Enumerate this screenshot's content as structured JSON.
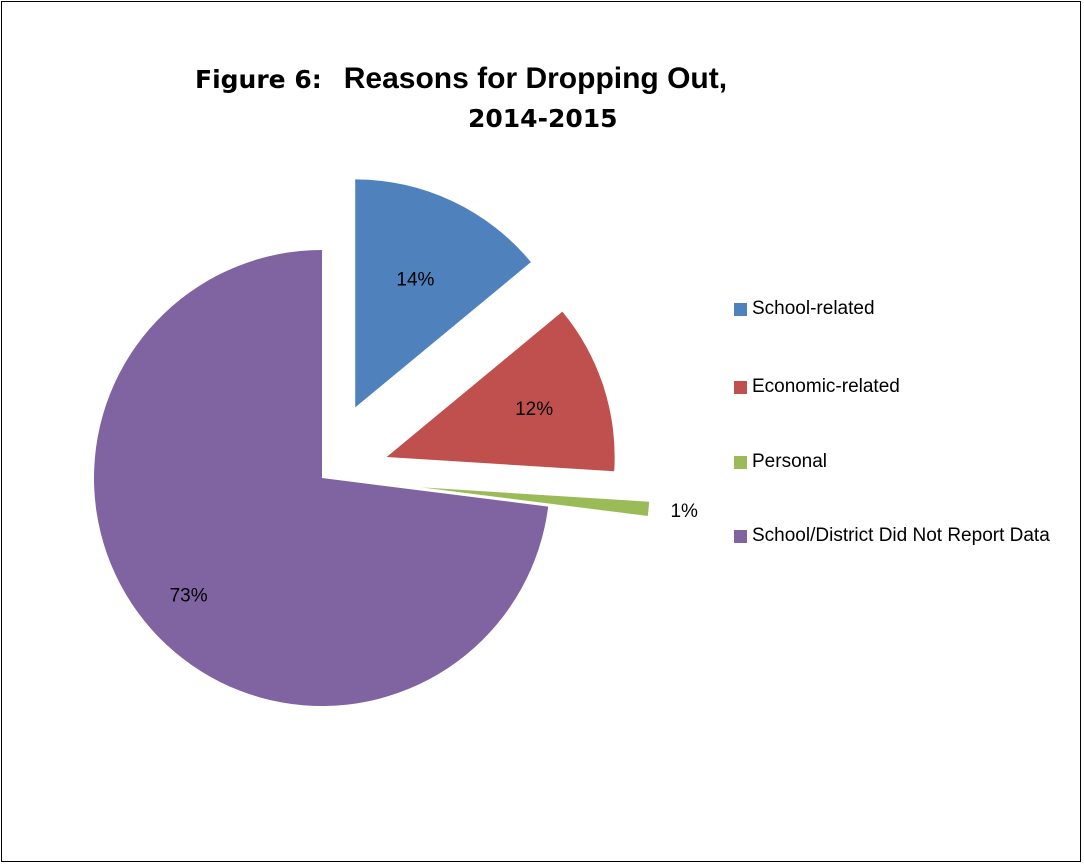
{
  "chart_data": {
    "type": "pie",
    "title_prefix": "Figure 6:",
    "title_main": "Reasons for Dropping Out,",
    "title_line2": "2014-2015",
    "categories": [
      "School-related",
      "Economic-related",
      "Personal",
      "School/District Did Not Report Data"
    ],
    "values": [
      14,
      12,
      1,
      73
    ],
    "data_labels": [
      "14%",
      "12%",
      "1%",
      "73%"
    ],
    "colors": [
      "#4F81BD",
      "#C0504D",
      "#9BBB59",
      "#8064A2"
    ],
    "exploded": true,
    "legend_position": "right"
  }
}
